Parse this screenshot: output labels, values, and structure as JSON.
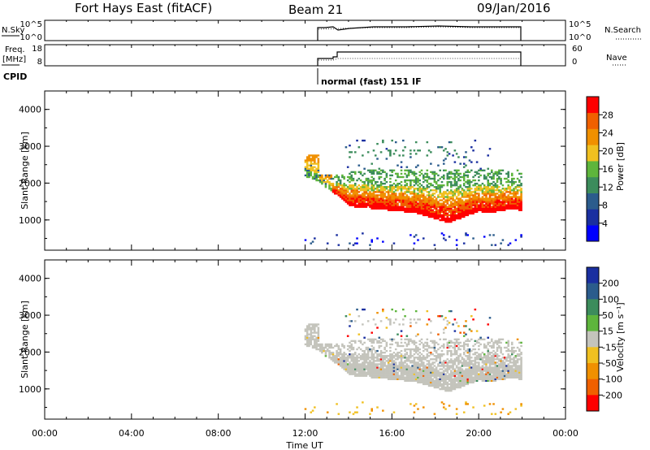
{
  "header": {
    "station": "Fort Hays East (fitACF)",
    "beam": "Beam 21",
    "date": "09/Jan/2016"
  },
  "params": {
    "nsky_label": "N.Sky",
    "nsky_ticks": [
      "10^5",
      "10^0"
    ],
    "nsearch_label": "N.Search",
    "nsearch_ticks": [
      "10^5",
      "10^0"
    ],
    "freq_label_top": "Freq.",
    "freq_label_bottom": "[MHz]",
    "freq_ticks": [
      "18",
      "8"
    ],
    "nave_label": "Nave",
    "nave_ticks": [
      "60",
      "0"
    ],
    "cpid_label": "CPID",
    "cpid_text": "normal (fast) 151 IF"
  },
  "colors": {
    "power": [
      "#0000ff",
      "#1a2fa0",
      "#2b5c8c",
      "#3c8c5c",
      "#5eb53c",
      "#f0c020",
      "#f09000",
      "#f06000",
      "#ff0000"
    ],
    "velocity": [
      "#ff0000",
      "#f06000",
      "#f09000",
      "#f0c020",
      "#c4c4bc",
      "#5eb53c",
      "#3c8c5c",
      "#2b5c8c",
      "#1a2fa0"
    ]
  },
  "chart_data": [
    {
      "type": "heatmap",
      "name": "power",
      "ylabel": "Slant Range [km]",
      "ylim": [
        180,
        4500
      ],
      "y_ticks": [
        1000,
        2000,
        3000,
        4000
      ],
      "xlim": [
        0,
        24
      ],
      "data_start_hour": 11.97,
      "data_end_hour": 21.95,
      "colorbar": {
        "label": "Power [dB]",
        "ticks": [
          4,
          8,
          12,
          16,
          20,
          24,
          28
        ],
        "range": [
          0,
          32
        ]
      }
    },
    {
      "type": "heatmap",
      "name": "velocity",
      "ylabel": "Slant Range [km]",
      "ylim": [
        180,
        4500
      ],
      "y_ticks": [
        1000,
        2000,
        3000,
        4000
      ],
      "xlim": [
        0,
        24
      ],
      "colorbar": {
        "label": "Velocity [m s⁻¹]",
        "ticks": [
          "200",
          "100",
          "50",
          "15",
          "-15",
          "-50",
          "-100",
          "-200"
        ]
      }
    }
  ],
  "xaxis": {
    "label": "Time UT",
    "ticks": [
      "00:00",
      "04:00",
      "08:00",
      "12:00",
      "16:00",
      "20:00",
      "00:00"
    ]
  }
}
